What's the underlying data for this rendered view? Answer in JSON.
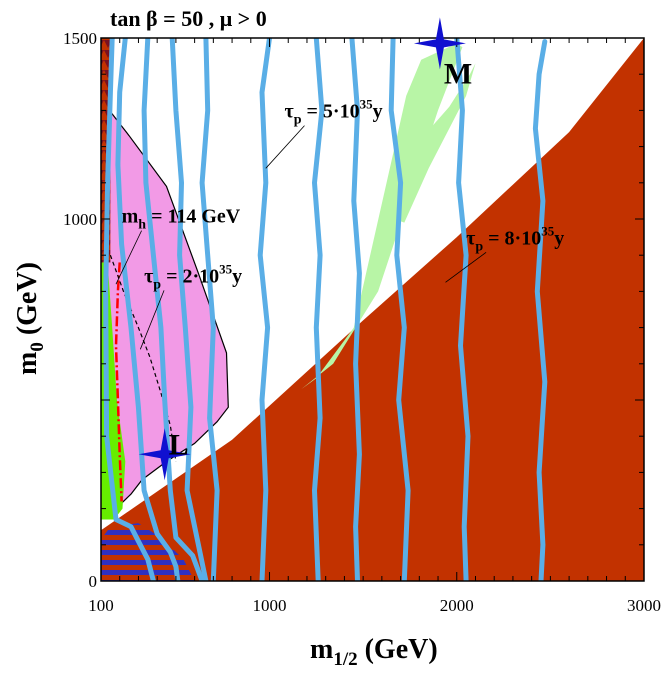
{
  "chart_data": {
    "type": "contour",
    "title": "tan β = 50 ,  μ > 0",
    "xlabel_main": "m",
    "xlabel_sub": "1/2",
    "xlabel_unit": " (GeV)",
    "ylabel_main": "m",
    "ylabel_sub": "0",
    "ylabel_unit": " (GeV)",
    "xlim": [
      100,
      3000
    ],
    "ylim": [
      0,
      1500
    ],
    "xticks": [
      100,
      1000,
      2000,
      3000
    ],
    "yticks": [
      0,
      1000,
      1500
    ],
    "grid": false,
    "colors": {
      "excluded": "#c23200",
      "pink": "#f29ae6",
      "green_band": "#b8f5a6",
      "bright_green": "#66ee00",
      "blue_contour": "#5aaee6",
      "hatch_dark": "#7a1020",
      "stripe_blue": "#3030c0",
      "marker": "#1010d0",
      "red_line": "#ff0000"
    },
    "annotations": [
      {
        "id": "mh",
        "main": "m",
        "sub": "h",
        "rest": " = 114 GeV",
        "x": 210,
        "y": 990,
        "point": [
          180,
          820
        ]
      },
      {
        "id": "tau2",
        "main": "τ",
        "sub": "p",
        "rest": " = 2·10",
        "sup": "35",
        "tail": "y",
        "x": 330,
        "y": 825,
        "point": [
          310,
          640
        ]
      },
      {
        "id": "tau5",
        "main": "τ",
        "sub": "p",
        "rest": " = 5·10",
        "sup": "35",
        "tail": "y",
        "x": 1080,
        "y": 1280,
        "point": [
          980,
          1140
        ]
      },
      {
        "id": "tau8",
        "main": "τ",
        "sub": "p",
        "rest": " = 8·10",
        "sup": "35",
        "tail": "y",
        "x": 2050,
        "y": 930,
        "point": [
          1940,
          825
        ]
      }
    ],
    "points": [
      {
        "label": "M",
        "x": 1910,
        "y": 1485
      },
      {
        "label": "L",
        "x": 440,
        "y": 350
      }
    ],
    "regions": {
      "excluded_boundary": [
        [
          100,
          140
        ],
        [
          800,
          390
        ],
        [
          1500,
          720
        ],
        [
          2000,
          950
        ],
        [
          2600,
          1240
        ],
        [
          3000,
          1500
        ]
      ],
      "pink_boundary": [
        [
          130,
          1310
        ],
        [
          250,
          1230
        ],
        [
          450,
          1090
        ],
        [
          620,
          850
        ],
        [
          770,
          630
        ],
        [
          780,
          480
        ],
        [
          720,
          440
        ],
        [
          600,
          380
        ],
        [
          450,
          330
        ],
        [
          320,
          280
        ],
        [
          260,
          240
        ],
        [
          180,
          200
        ]
      ],
      "green_band": [
        [
          1730,
          1340
        ],
        [
          1810,
          1440
        ],
        [
          2000,
          1485
        ],
        [
          2030,
          1475
        ],
        [
          1900,
          1300
        ],
        [
          1580,
          800
        ],
        [
          1340,
          600
        ],
        [
          1170,
          530
        ],
        [
          1250,
          560
        ],
        [
          1450,
          700
        ]
      ],
      "green_band2": [
        [
          1620,
          1010
        ],
        [
          1790,
          1210
        ],
        [
          1960,
          1310
        ],
        [
          2070,
          1400
        ],
        [
          2100,
          1430
        ],
        [
          2050,
          1340
        ],
        [
          1850,
          1140
        ],
        [
          1720,
          990
        ]
      ]
    },
    "series": [
      {
        "type": "contour",
        "points": [
          [
            160,
            1500
          ],
          [
            150,
            1350
          ],
          [
            135,
            1100
          ],
          [
            125,
            800
          ],
          [
            130,
            400
          ],
          [
            180,
            170
          ],
          [
            260,
            150
          ],
          [
            300,
            110
          ],
          [
            350,
            60
          ],
          [
            380,
            0
          ]
        ]
      },
      {
        "type": "contour",
        "points": [
          [
            230,
            1500
          ],
          [
            200,
            1350
          ],
          [
            190,
            1150
          ],
          [
            210,
            930
          ],
          [
            260,
            700
          ],
          [
            300,
            480
          ],
          [
            330,
            250
          ],
          [
            400,
            130
          ],
          [
            470,
            80
          ],
          [
            500,
            40
          ],
          [
            510,
            0
          ]
        ]
      },
      {
        "type": "contour",
        "points": [
          [
            350,
            1500
          ],
          [
            330,
            1300
          ],
          [
            340,
            1100
          ],
          [
            380,
            900
          ],
          [
            420,
            700
          ],
          [
            440,
            500
          ],
          [
            470,
            250
          ],
          [
            500,
            120
          ],
          [
            590,
            70
          ],
          [
            640,
            0
          ]
        ]
      },
      {
        "type": "contour",
        "points": [
          [
            480,
            1500
          ],
          [
            500,
            1300
          ],
          [
            530,
            1100
          ],
          [
            520,
            900
          ],
          [
            550,
            700
          ],
          [
            580,
            480
          ],
          [
            560,
            250
          ],
          [
            620,
            100
          ],
          [
            660,
            0
          ]
        ]
      },
      {
        "type": "contour",
        "points": [
          [
            660,
            1500
          ],
          [
            670,
            1300
          ],
          [
            640,
            1100
          ],
          [
            670,
            900
          ],
          [
            700,
            700
          ],
          [
            680,
            450
          ],
          [
            720,
            250
          ],
          [
            700,
            0
          ]
        ]
      },
      {
        "type": "contour",
        "points": [
          [
            1000,
            1500
          ],
          [
            960,
            1350
          ],
          [
            980,
            1100
          ],
          [
            950,
            900
          ],
          [
            990,
            700
          ],
          [
            960,
            500
          ],
          [
            980,
            250
          ],
          [
            960,
            0
          ]
        ]
      },
      {
        "type": "contour",
        "points": [
          [
            1250,
            1500
          ],
          [
            1280,
            1300
          ],
          [
            1240,
            1100
          ],
          [
            1270,
            900
          ],
          [
            1250,
            700
          ],
          [
            1270,
            450
          ],
          [
            1240,
            250
          ],
          [
            1260,
            0
          ]
        ]
      },
      {
        "type": "contour",
        "points": [
          [
            1440,
            1500
          ],
          [
            1470,
            1300
          ],
          [
            1450,
            1050
          ],
          [
            1480,
            850
          ],
          [
            1460,
            600
          ],
          [
            1480,
            350
          ],
          [
            1460,
            150
          ],
          [
            1470,
            0
          ]
        ]
      },
      {
        "type": "contour",
        "points": [
          [
            1660,
            1500
          ],
          [
            1650,
            1300
          ],
          [
            1700,
            1100
          ],
          [
            1680,
            900
          ],
          [
            1720,
            700
          ],
          [
            1690,
            500
          ],
          [
            1740,
            250
          ],
          [
            1720,
            0
          ]
        ]
      },
      {
        "type": "contour",
        "points": [
          [
            2000,
            1500
          ],
          [
            2030,
            1300
          ],
          [
            2010,
            1100
          ],
          [
            2050,
            900
          ],
          [
            2020,
            650
          ],
          [
            2060,
            400
          ],
          [
            2040,
            150
          ],
          [
            2050,
            0
          ]
        ]
      },
      {
        "type": "contour",
        "points": [
          [
            2470,
            1490
          ],
          [
            2440,
            1400
          ],
          [
            2420,
            1250
          ],
          [
            2460,
            1050
          ],
          [
            2430,
            800
          ],
          [
            2470,
            550
          ],
          [
            2440,
            300
          ],
          [
            2460,
            100
          ],
          [
            2450,
            0
          ]
        ]
      }
    ]
  }
}
